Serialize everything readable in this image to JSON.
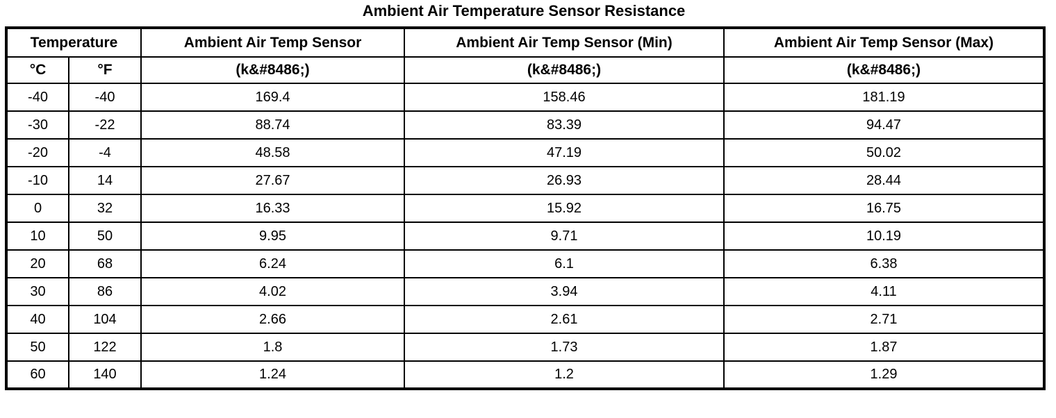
{
  "page": {
    "title": "Ambient Air Temperature Sensor Resistance"
  },
  "table": {
    "header": {
      "temperature_group": "Temperature",
      "sensor": "Ambient Air Temp Sensor",
      "sensor_min": "Ambient Air Temp Sensor (Min)",
      "sensor_max": "Ambient Air Temp Sensor (Max)",
      "unit_c": "°C",
      "unit_f": "°F",
      "unit_kohm": "(k&#8486;)"
    },
    "rows": [
      [
        "-40",
        "-40",
        "169.4",
        "158.46",
        "181.19"
      ],
      [
        "-30",
        "-22",
        "88.74",
        "83.39",
        "94.47"
      ],
      [
        "-20",
        "-4",
        "48.58",
        "47.19",
        "50.02"
      ],
      [
        "-10",
        "14",
        "27.67",
        "26.93",
        "28.44"
      ],
      [
        "0",
        "32",
        "16.33",
        "15.92",
        "16.75"
      ],
      [
        "10",
        "50",
        "9.95",
        "9.71",
        "10.19"
      ],
      [
        "20",
        "68",
        "6.24",
        "6.1",
        "6.38"
      ],
      [
        "30",
        "86",
        "4.02",
        "3.94",
        "4.11"
      ],
      [
        "40",
        "104",
        "2.66",
        "2.61",
        "2.71"
      ],
      [
        "50",
        "122",
        "1.8",
        "1.73",
        "1.87"
      ],
      [
        "60",
        "140",
        "1.24",
        "1.2",
        "1.29"
      ]
    ],
    "colors": {
      "border": "#000000",
      "text": "#000000",
      "background": "#ffffff"
    }
  }
}
